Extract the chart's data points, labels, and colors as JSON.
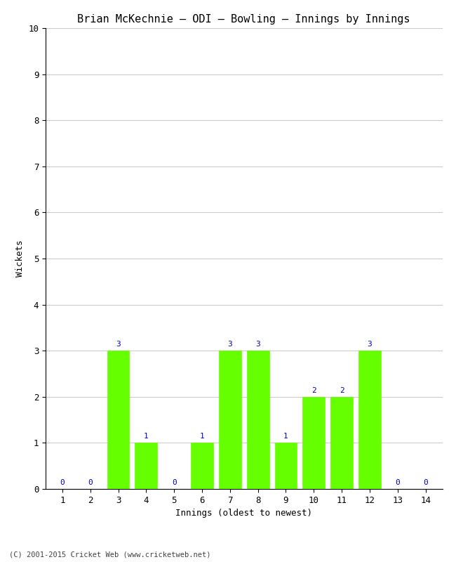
{
  "title": "Brian McKechnie – ODI – Bowling – Innings by Innings",
  "xlabel": "Innings (oldest to newest)",
  "ylabel": "Wickets",
  "categories": [
    1,
    2,
    3,
    4,
    5,
    6,
    7,
    8,
    9,
    10,
    11,
    12,
    13,
    14
  ],
  "values": [
    0,
    0,
    3,
    1,
    0,
    1,
    3,
    3,
    1,
    2,
    2,
    3,
    0,
    0
  ],
  "bar_color": "#66ff00",
  "bar_edge_color": "#66ff00",
  "label_color": "#0000cc",
  "ylim": [
    0,
    10
  ],
  "yticks": [
    0,
    1,
    2,
    3,
    4,
    5,
    6,
    7,
    8,
    9,
    10
  ],
  "bg_color": "#ffffff",
  "grid_color": "#cccccc",
  "footer": "(C) 2001-2015 Cricket Web (www.cricketweb.net)",
  "title_fontsize": 11,
  "label_fontsize": 9,
  "tick_fontsize": 9,
  "annotation_fontsize": 8
}
